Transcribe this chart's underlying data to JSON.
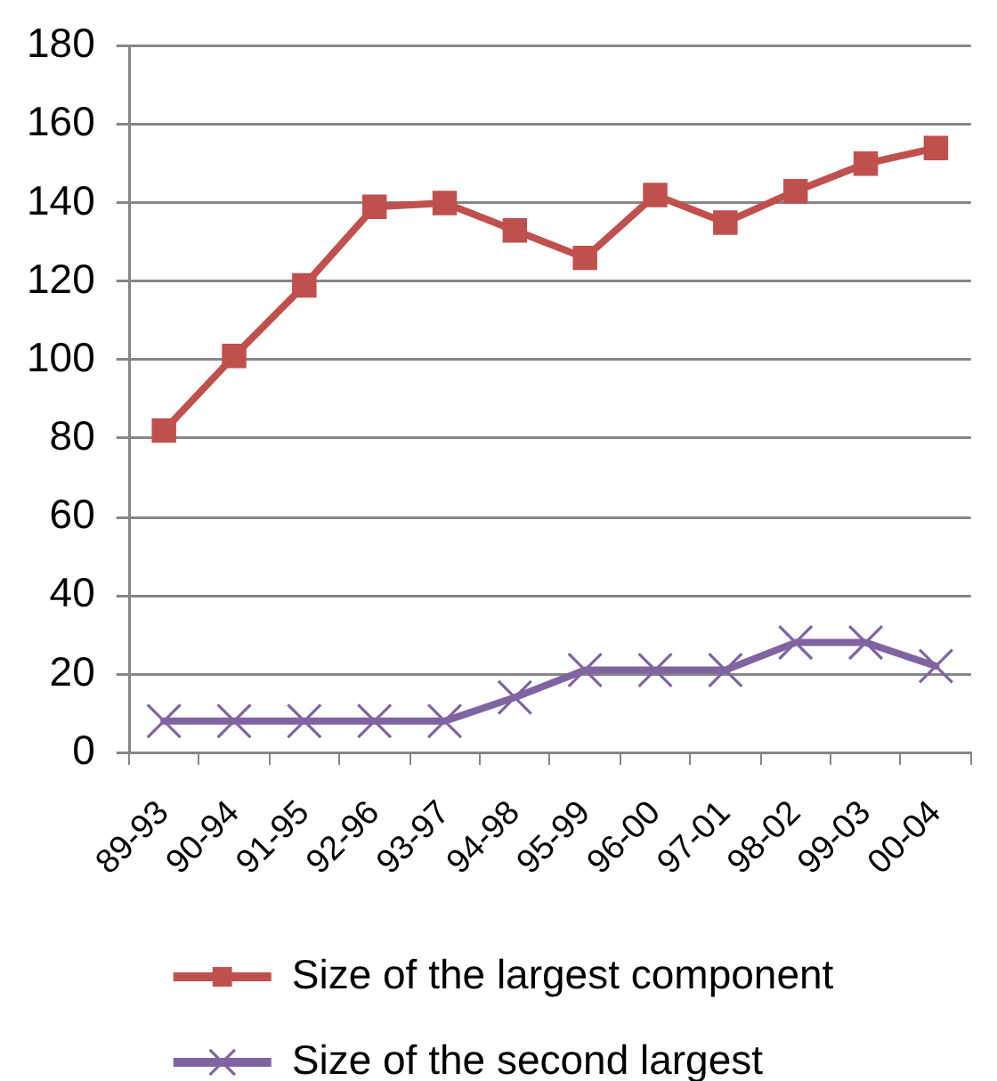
{
  "chart_data": {
    "type": "line",
    "categories": [
      "89-93",
      "90-94",
      "91-95",
      "92-96",
      "93-97",
      "94-98",
      "95-99",
      "96-00",
      "97-01",
      "98-02",
      "99-03",
      "00-04"
    ],
    "series": [
      {
        "name": "Size of the largest component",
        "color": "#c0504d",
        "marker": "square",
        "values": [
          82,
          101,
          119,
          139,
          140,
          133,
          126,
          142,
          135,
          143,
          150,
          154
        ]
      },
      {
        "name": "Size of the second largest",
        "color": "#8064a2",
        "marker": "cross",
        "values": [
          8,
          8,
          8,
          8,
          8,
          14,
          21,
          21,
          21,
          28,
          28,
          22
        ]
      }
    ],
    "ylim": [
      0,
      180
    ],
    "yticks": [
      0,
      20,
      40,
      60,
      80,
      100,
      120,
      140,
      160,
      180
    ],
    "grid": "y",
    "legend": "bottom"
  }
}
